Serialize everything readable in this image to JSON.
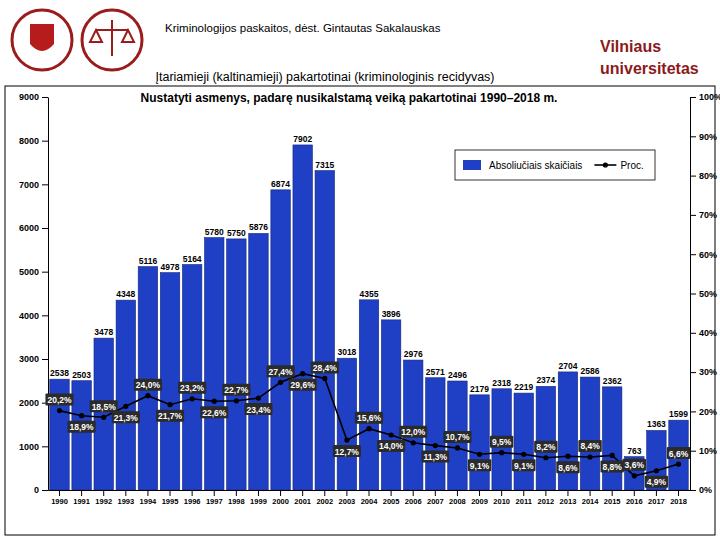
{
  "page": {
    "header": "Kriminologijos paskaitos, dėst. Gintautas Sakalauskas",
    "subtitle": "Įtariamieji (kaltinamieji) pakartotinai (kriminologinis recidyvas)",
    "university": [
      "Vilniaus",
      "universitetas"
    ]
  },
  "chart_data": {
    "type": "bar",
    "title": "Nustatyti asmenys, padarę nusikalstamą veiką pakartotinai 1990–2018 m.",
    "categories": [
      "1990",
      "1991",
      "1992",
      "1993",
      "1994",
      "1995",
      "1996",
      "1997",
      "1998",
      "1999",
      "2000",
      "2001",
      "2002",
      "2003",
      "2004",
      "2005",
      "2006",
      "2007",
      "2008",
      "2009",
      "2010",
      "2011",
      "2012",
      "2013",
      "2014",
      "2015",
      "2016",
      "2017",
      "2018"
    ],
    "series": [
      {
        "name": "Absoliučiais skaičiais",
        "type": "bar",
        "color": "#1f3fc4",
        "values": [
          2538,
          2503,
          3478,
          4348,
          5116,
          4978,
          5164,
          5780,
          5750,
          5876,
          6874,
          7902,
          7315,
          3018,
          4355,
          3896,
          2976,
          2571,
          2496,
          2179,
          2318,
          2219,
          2374,
          2704,
          2586,
          2362,
          763,
          1363,
          1599
        ]
      },
      {
        "name": "Proc.",
        "type": "line",
        "axis": "y2",
        "color": "#000000",
        "marker": "circle",
        "line_style": "solid",
        "values": [
          20.2,
          18.9,
          18.5,
          21.3,
          24.0,
          21.7,
          23.2,
          22.6,
          22.7,
          23.4,
          27.4,
          29.6,
          28.4,
          12.7,
          15.6,
          14.0,
          12.0,
          11.3,
          10.7,
          9.1,
          9.5,
          9.1,
          8.2,
          8.6,
          8.4,
          8.8,
          3.6,
          4.9,
          6.6
        ],
        "value_labels": [
          "20,2%",
          "18,9%",
          "18,5%",
          "21,3%",
          "24,0%",
          "21,7%",
          "23,2%",
          "22,6%",
          "22,7%",
          "23,4%",
          "27,4%",
          "29,6%",
          "28,4%",
          "12,7%",
          "15,6%",
          "14,0%",
          "12,0%",
          "11,3%",
          "10,7%",
          "9,1%",
          "9,5%",
          "9,1%",
          "8,2%",
          "8,6%",
          "8,4%",
          "8,8%",
          "3,6%",
          "4,9%",
          "6,6%"
        ]
      }
    ],
    "ylim": [
      0,
      9000
    ],
    "yticks": [
      0,
      1000,
      2000,
      3000,
      4000,
      5000,
      6000,
      7000,
      8000,
      9000
    ],
    "y2lim": [
      0,
      100
    ],
    "y2ticks": [
      {
        "value": 0,
        "label": "0%"
      },
      {
        "value": 10,
        "label": "10%"
      },
      {
        "value": 20,
        "label": "20%"
      },
      {
        "value": 30,
        "label": "30%"
      },
      {
        "value": 40,
        "label": "40%"
      },
      {
        "value": 50,
        "label": "50%"
      },
      {
        "value": 60,
        "label": "60%"
      },
      {
        "value": 70,
        "label": "70%"
      },
      {
        "value": 80,
        "label": "80%"
      },
      {
        "value": 90,
        "label": "90%"
      },
      {
        "value": 100,
        "label": "100%"
      }
    ],
    "grid": false,
    "legend": "upper right",
    "data_labels": true
  }
}
